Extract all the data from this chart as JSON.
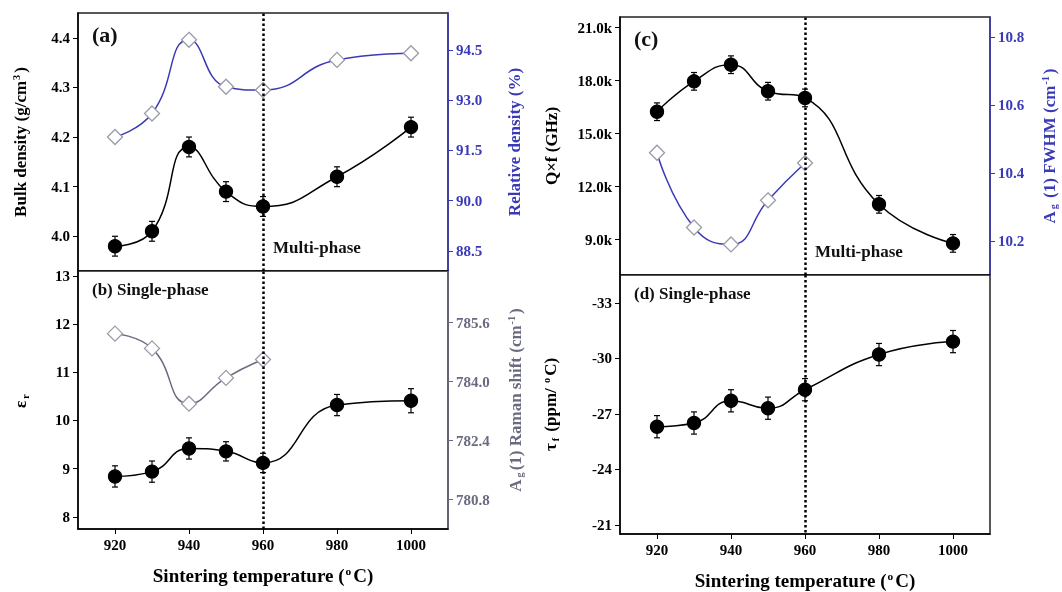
{
  "chart_data": [
    {
      "type": "line",
      "annotations": [
        "(a)",
        "Multi-phase"
      ],
      "ylabel": "Bulk density (g/cm$^{3}$)",
      "y2label": "Relative density (%)",
      "xlim": [
        910,
        1010
      ],
      "xticks": [
        920,
        940,
        960,
        980,
        1000
      ],
      "ylim": [
        3.93,
        4.45
      ],
      "yticks": [
        {
          "value": 4,
          "label": "4.0"
        },
        4.1,
        4.2,
        4.3,
        4.4
      ],
      "y2lim": [
        87.9,
        95.6
      ],
      "y2ticks": [
        88.5,
        {
          "value": 90,
          "label": "90.0"
        },
        91.5,
        {
          "value": 93,
          "label": "93.0"
        },
        94.5
      ],
      "tick_labels": "y",
      "ref_lines": [
        {
          "axis": "x",
          "value": 960,
          "color": "#000000",
          "line_style": "dotted"
        }
      ],
      "series": [
        {
          "x": [
            920,
            930,
            940,
            950,
            960,
            980,
            1000
          ],
          "values": [
            3.98,
            4.01,
            4.18,
            4.09,
            4.06,
            4.12,
            4.22
          ],
          "errors": [
            0.02,
            0.02,
            0.02,
            0.02,
            0.02,
            0.02,
            0.02
          ],
          "color": "#000000",
          "marker": "circle"
        },
        {
          "x": [
            920,
            930,
            940,
            950,
            960,
            980,
            1000
          ],
          "values": [
            91.9,
            92.6,
            94.8,
            93.4,
            93.3,
            94.2,
            94.4
          ],
          "color": "#3a3ab8",
          "marker": "diamond",
          "axis": "y2"
        }
      ]
    },
    {
      "type": "line",
      "annotations": [
        "(b) Single-phase"
      ],
      "xlabel": "Sintering temperature ($^{o}$C)",
      "ylabel": "ε$_{r}$",
      "y2label": "A$_{g}$(1) Raman shift (cm$^{-1}$)",
      "xlim": [
        910,
        1010
      ],
      "xticks": [
        920,
        940,
        960,
        980,
        1000
      ],
      "ylim": [
        7.75,
        13.1
      ],
      "yticks": [
        8,
        9,
        10,
        11,
        12,
        13
      ],
      "y2lim": [
        780,
        787
      ],
      "y2ticks": [
        780.8,
        782.4,
        {
          "value": 784,
          "label": "784.0"
        },
        785.6
      ],
      "ref_lines": [
        {
          "axis": "x",
          "value": 960,
          "color": "#000000",
          "line_style": "dotted"
        }
      ],
      "series": [
        {
          "x": [
            920,
            930,
            940,
            950,
            960,
            980,
            1000
          ],
          "values": [
            8.84,
            8.94,
            9.42,
            9.36,
            9.12,
            10.32,
            10.41
          ],
          "errors": [
            0.22,
            0.22,
            0.22,
            0.2,
            0.2,
            0.22,
            0.25
          ],
          "color": "#000000",
          "marker": "circle"
        },
        {
          "x": [
            920,
            930,
            940,
            950,
            960
          ],
          "values": [
            785.3,
            784.9,
            783.4,
            784.1,
            784.6
          ],
          "color": "#6a6a80",
          "marker": "diamond",
          "axis": "y2"
        }
      ]
    },
    {
      "type": "line",
      "annotations": [
        "(c)",
        "Multi-phase"
      ],
      "ylabel": "Q×f (GHz)",
      "y2label": "A$_{g}$ (1) FWHM (cm$^{-1}$)",
      "xlim": [
        910,
        1010
      ],
      "xticks": [
        920,
        940,
        960,
        980,
        1000
      ],
      "ylim": [
        7000,
        21600
      ],
      "yticks": [
        {
          "value": 9000,
          "label": "9.0k"
        },
        {
          "value": 12000,
          "label": "12.0k"
        },
        {
          "value": 15000,
          "label": "15.0k"
        },
        {
          "value": 18000,
          "label": "18.0k"
        },
        {
          "value": 21000,
          "label": "21.0k"
        }
      ],
      "y2lim": [
        10.1,
        10.86
      ],
      "y2ticks": [
        10.2,
        10.4,
        10.6,
        10.8
      ],
      "tick_labels": "y",
      "ref_lines": [
        {
          "axis": "x",
          "value": 960,
          "color": "#000000",
          "line_style": "dotted"
        }
      ],
      "series": [
        {
          "x": [
            920,
            930,
            940,
            950,
            960,
            980,
            1000
          ],
          "values": [
            16240,
            17960,
            18900,
            17400,
            17020,
            11000,
            8790
          ],
          "errors": [
            500,
            500,
            500,
            500,
            500,
            500,
            500
          ],
          "color": "#000000",
          "marker": "circle"
        },
        {
          "x": [
            920,
            930,
            940,
            950,
            960
          ],
          "values": [
            10.46,
            10.24,
            10.19,
            10.32,
            10.43
          ],
          "color": "#3a3ab8",
          "marker": "diamond",
          "axis": "y2"
        }
      ]
    },
    {
      "type": "line",
      "annotations": [
        "(d) Single-phase"
      ],
      "xlabel": "Sintering temperature ($^{o}$C)",
      "ylabel": "τ$_{f}$ (ppm/ $^{o}$C)",
      "xlim": [
        910,
        1010
      ],
      "xticks": [
        920,
        940,
        960,
        980,
        1000
      ],
      "ylim": [
        -20.5,
        -34.5
      ],
      "yticks": [
        -21,
        -24,
        -27,
        -30,
        -33
      ],
      "ref_lines": [
        {
          "axis": "x",
          "value": 960,
          "color": "#000000",
          "line_style": "dotted"
        }
      ],
      "series": [
        {
          "x": [
            920,
            930,
            940,
            950,
            960,
            980,
            1000
          ],
          "values": [
            -26.3,
            -26.5,
            -27.7,
            -27.3,
            -28.3,
            -30.2,
            -30.9
          ],
          "errors": [
            0.6,
            0.6,
            0.6,
            0.6,
            0.6,
            0.6,
            0.6
          ],
          "color": "#000000",
          "marker": "circle"
        }
      ]
    }
  ]
}
